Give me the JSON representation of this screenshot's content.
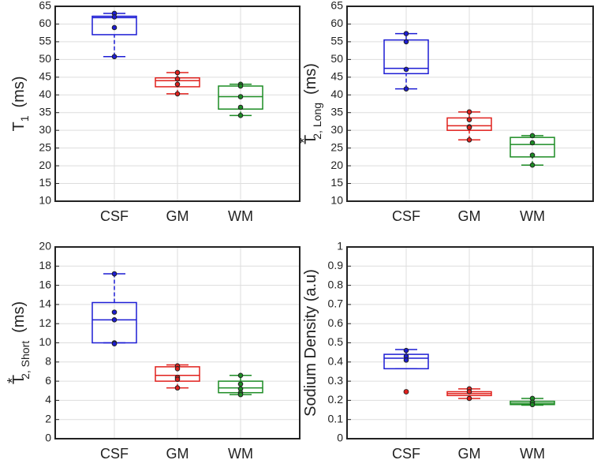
{
  "chart_data": [
    {
      "type": "box",
      "ylabel": {
        "main": "T",
        "sub": "1",
        "unit": "(ms)"
      },
      "categories": [
        "CSF",
        "GM",
        "WM"
      ],
      "colors": [
        "#1c1cd4",
        "#e0201c",
        "#1c8c24"
      ],
      "ylim": [
        10,
        65
      ],
      "yticks": [
        10,
        15,
        20,
        25,
        30,
        35,
        40,
        45,
        50,
        55,
        60,
        65
      ],
      "grid": true,
      "boxes": [
        {
          "whisker_low": 50.8,
          "q1": 57,
          "median": 61.8,
          "q3": 62.2,
          "whisker_high": 63,
          "points": [
            63,
            62,
            59,
            50.8
          ]
        },
        {
          "whisker_low": 40.3,
          "q1": 42.3,
          "median": 44,
          "q3": 44.8,
          "whisker_high": 46.3,
          "points": [
            46.3,
            44.5,
            43,
            40.3
          ]
        },
        {
          "whisker_low": 34.2,
          "q1": 36,
          "median": 39.5,
          "q3": 42.5,
          "whisker_high": 43,
          "points": [
            43,
            42.5,
            39.5,
            36.5,
            34.2
          ]
        }
      ]
    },
    {
      "type": "box",
      "ylabel": {
        "main": "T",
        "sup": "*",
        "sub": "2, Long",
        "unit": "(ms)"
      },
      "categories": [
        "CSF",
        "GM",
        "WM"
      ],
      "colors": [
        "#1c1cd4",
        "#e0201c",
        "#1c8c24"
      ],
      "ylim": [
        10,
        65
      ],
      "yticks": [
        10,
        15,
        20,
        25,
        30,
        35,
        40,
        45,
        50,
        55,
        60,
        65
      ],
      "grid": true,
      "boxes": [
        {
          "whisker_low": 41.7,
          "q1": 46,
          "median": 47.5,
          "q3": 55.5,
          "whisker_high": 57.3,
          "points": [
            57.3,
            55,
            47.2,
            41.7
          ]
        },
        {
          "whisker_low": 27.3,
          "q1": 30,
          "median": 31.3,
          "q3": 33.5,
          "whisker_high": 35.2,
          "points": [
            35.2,
            33,
            31,
            30.8,
            27.3
          ]
        },
        {
          "whisker_low": 20.2,
          "q1": 22.5,
          "median": 26,
          "q3": 28,
          "whisker_high": 28.5,
          "points": [
            28.5,
            26.5,
            23,
            20.2
          ]
        }
      ]
    },
    {
      "type": "box",
      "ylabel": {
        "main": "T",
        "sup": "*",
        "sub": "2, Short",
        "unit": "(ms)"
      },
      "categories": [
        "CSF",
        "GM",
        "WM"
      ],
      "colors": [
        "#1c1cd4",
        "#e0201c",
        "#1c8c24"
      ],
      "ylim": [
        0,
        20
      ],
      "yticks": [
        0,
        2,
        4,
        6,
        8,
        10,
        12,
        14,
        16,
        18,
        20
      ],
      "grid": true,
      "boxes": [
        {
          "whisker_low": 10,
          "q1": 10,
          "median": 12.4,
          "q3": 14.2,
          "whisker_high": 17.2,
          "points": [
            17.2,
            13.2,
            12.4,
            10,
            9.9
          ]
        },
        {
          "whisker_low": 5.3,
          "q1": 6,
          "median": 6.6,
          "q3": 7.5,
          "whisker_high": 7.7,
          "points": [
            7.6,
            7.3,
            6.4,
            6.2,
            5.3
          ]
        },
        {
          "whisker_low": 4.6,
          "q1": 4.8,
          "median": 5.3,
          "q3": 6,
          "whisker_high": 6.6,
          "points": [
            6.6,
            5.7,
            5.2,
            4.8,
            4.6
          ]
        }
      ]
    },
    {
      "type": "box",
      "ylabel": {
        "main": "Sodium Density (a.u)"
      },
      "categories": [
        "CSF",
        "GM",
        "WM"
      ],
      "colors": [
        "#1c1cd4",
        "#e0201c",
        "#1c8c24"
      ],
      "ylim": [
        0,
        1
      ],
      "yticks": [
        0,
        0.1,
        0.2,
        0.3,
        0.4,
        0.5,
        0.6,
        0.7,
        0.8,
        0.9,
        1
      ],
      "grid": true,
      "boxes": [
        {
          "whisker_low": 0.365,
          "q1": 0.365,
          "median": 0.42,
          "q3": 0.44,
          "whisker_high": 0.465,
          "points": [
            0.46,
            0.43,
            0.41
          ],
          "outliers": [
            0.245
          ]
        },
        {
          "whisker_low": 0.21,
          "q1": 0.225,
          "median": 0.235,
          "q3": 0.245,
          "whisker_high": 0.26,
          "points": [
            0.26,
            0.245,
            0.21
          ]
        },
        {
          "whisker_low": 0.175,
          "q1": 0.178,
          "median": 0.185,
          "q3": 0.195,
          "whisker_high": 0.21,
          "points": [
            0.21,
            0.19,
            0.178
          ]
        }
      ]
    }
  ]
}
